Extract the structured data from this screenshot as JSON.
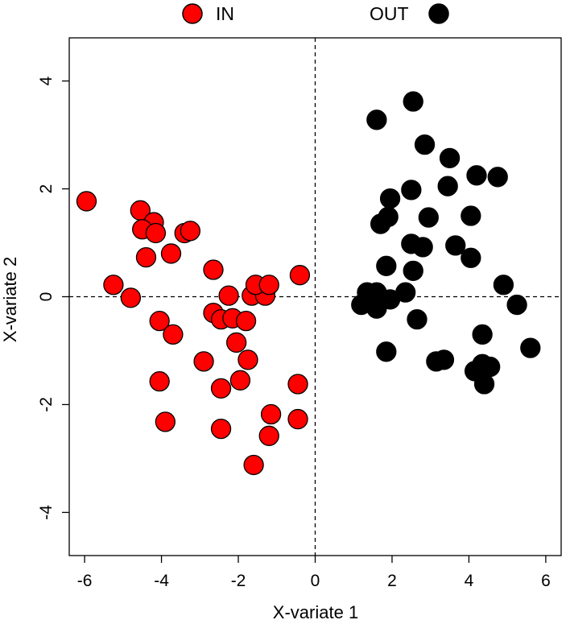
{
  "chart_data": {
    "type": "scatter",
    "title": "",
    "xlabel": "X-variate 1",
    "ylabel": "X-variate 2",
    "xlim": [
      -6.4,
      6.4
    ],
    "ylim": [
      -4.8,
      4.8
    ],
    "x_ticks": [
      -6,
      -4,
      -2,
      0,
      2,
      4,
      6
    ],
    "y_ticks": [
      -4,
      -2,
      0,
      2,
      4
    ],
    "x_tick_labels": [
      "-6",
      "-4",
      "-2",
      "0",
      "2",
      "4",
      "6"
    ],
    "y_tick_labels": [
      "-4",
      "-2",
      "0",
      "2",
      "4"
    ],
    "reference_lines": {
      "x": 0,
      "y": 0,
      "style": "dashed"
    },
    "grid": false,
    "legend": {
      "placement": "top-center",
      "orientation": "horizontal"
    },
    "series": [
      {
        "name": "IN",
        "color": "#ff0000",
        "stroke": "#000000",
        "points": [
          [
            -5.95,
            1.77
          ],
          [
            -4.55,
            1.6
          ],
          [
            -4.2,
            1.38
          ],
          [
            -4.5,
            1.25
          ],
          [
            -4.15,
            1.18
          ],
          [
            -3.4,
            1.18
          ],
          [
            -3.25,
            1.22
          ],
          [
            -3.75,
            0.8
          ],
          [
            -4.4,
            0.73
          ],
          [
            -2.65,
            0.5
          ],
          [
            -5.25,
            0.22
          ],
          [
            -4.8,
            -0.02
          ],
          [
            -2.25,
            0.02
          ],
          [
            -1.65,
            0.02
          ],
          [
            -1.3,
            0.02
          ],
          [
            -1.55,
            0.22
          ],
          [
            -1.2,
            0.22
          ],
          [
            -0.4,
            0.4
          ],
          [
            -2.65,
            -0.3
          ],
          [
            -2.45,
            -0.42
          ],
          [
            -2.15,
            -0.4
          ],
          [
            -1.8,
            -0.45
          ],
          [
            -4.05,
            -0.45
          ],
          [
            -3.7,
            -0.7
          ],
          [
            -2.05,
            -0.85
          ],
          [
            -2.9,
            -1.2
          ],
          [
            -1.75,
            -1.17
          ],
          [
            -4.05,
            -1.57
          ],
          [
            -1.95,
            -1.55
          ],
          [
            -2.45,
            -1.7
          ],
          [
            -0.45,
            -1.62
          ],
          [
            -3.9,
            -2.32
          ],
          [
            -1.15,
            -2.18
          ],
          [
            -0.45,
            -2.27
          ],
          [
            -2.45,
            -2.45
          ],
          [
            -1.2,
            -2.58
          ],
          [
            -1.6,
            -3.12
          ]
        ]
      },
      {
        "name": "OUT",
        "color": "#000000",
        "stroke": "#000000",
        "points": [
          [
            2.55,
            3.62
          ],
          [
            1.6,
            3.28
          ],
          [
            2.85,
            2.82
          ],
          [
            3.5,
            2.57
          ],
          [
            4.2,
            2.25
          ],
          [
            4.75,
            2.22
          ],
          [
            2.5,
            1.98
          ],
          [
            3.45,
            2.05
          ],
          [
            1.95,
            1.82
          ],
          [
            1.9,
            1.48
          ],
          [
            2.95,
            1.47
          ],
          [
            4.05,
            1.5
          ],
          [
            1.7,
            1.35
          ],
          [
            2.5,
            0.98
          ],
          [
            2.8,
            0.92
          ],
          [
            3.65,
            0.95
          ],
          [
            1.85,
            0.57
          ],
          [
            2.55,
            0.48
          ],
          [
            4.05,
            0.72
          ],
          [
            4.9,
            0.22
          ],
          [
            1.35,
            0.08
          ],
          [
            1.6,
            0.08
          ],
          [
            2.35,
            0.08
          ],
          [
            1.2,
            -0.15
          ],
          [
            1.6,
            -0.22
          ],
          [
            1.95,
            -0.05
          ],
          [
            5.25,
            -0.15
          ],
          [
            2.65,
            -0.42
          ],
          [
            4.35,
            -0.7
          ],
          [
            5.6,
            -0.95
          ],
          [
            1.85,
            -1.02
          ],
          [
            3.15,
            -1.2
          ],
          [
            3.35,
            -1.17
          ],
          [
            4.35,
            -1.25
          ],
          [
            4.15,
            -1.38
          ],
          [
            4.55,
            -1.3
          ],
          [
            4.4,
            -1.62
          ]
        ]
      }
    ]
  }
}
